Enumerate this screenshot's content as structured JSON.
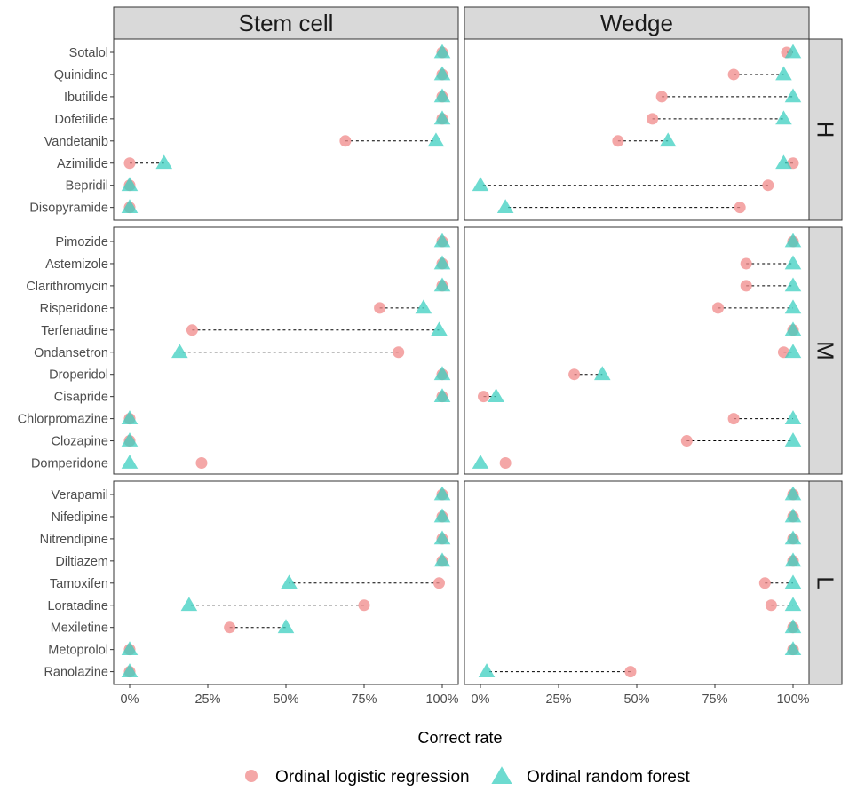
{
  "chart_data": {
    "type": "scatter",
    "subtype": "dumbbell",
    "xlabel": "Correct rate",
    "x_ticks": [
      "0%",
      "25%",
      "50%",
      "75%",
      "100%"
    ],
    "xlim": [
      0,
      100
    ],
    "columns": [
      "Stem cell",
      "Wedge"
    ],
    "rows": [
      {
        "label": "H",
        "drugs": [
          "Sotalol",
          "Quinidine",
          "Ibutilide",
          "Dofetilide",
          "Vandetanib",
          "Azimilide",
          "Bepridil",
          "Disopyramide"
        ]
      },
      {
        "label": "M",
        "drugs": [
          "Pimozide",
          "Astemizole",
          "Clarithromycin",
          "Risperidone",
          "Terfenadine",
          "Ondansetron",
          "Droperidol",
          "Cisapride",
          "Chlorpromazine",
          "Clozapine",
          "Domperidone"
        ]
      },
      {
        "label": "L",
        "drugs": [
          "Verapamil",
          "Nifedipine",
          "Nitrendipine",
          "Diltiazem",
          "Tamoxifen",
          "Loratadine",
          "Mexiletine",
          "Metoprolol",
          "Ranolazine"
        ]
      }
    ],
    "series": [
      {
        "name": "Ordinal logistic regression",
        "color": "#F08A8A",
        "marker": "circle",
        "values": {
          "Stem cell": [
            [
              100,
              100,
              100,
              100,
              69,
              0,
              0,
              0
            ],
            [
              100,
              100,
              100,
              80,
              20,
              86,
              100,
              100,
              0,
              0,
              23
            ],
            [
              100,
              100,
              100,
              100,
              99,
              75,
              32,
              0,
              0
            ]
          ],
          "Wedge": [
            [
              98,
              81,
              58,
              55,
              44,
              100,
              92,
              83
            ],
            [
              100,
              85,
              85,
              76,
              100,
              97,
              30,
              1,
              81,
              66,
              8
            ],
            [
              100,
              100,
              100,
              100,
              91,
              93,
              100,
              100,
              48
            ]
          ]
        }
      },
      {
        "name": "Ordinal random forest",
        "color": "#3CCFC0",
        "marker": "triangle",
        "values": {
          "Stem cell": [
            [
              100,
              100,
              100,
              100,
              98,
              11,
              0,
              0
            ],
            [
              100,
              100,
              100,
              94,
              99,
              16,
              100,
              100,
              0,
              0,
              0
            ],
            [
              100,
              100,
              100,
              100,
              51,
              19,
              50,
              0,
              0
            ]
          ],
          "Wedge": [
            [
              100,
              97,
              100,
              97,
              60,
              97,
              0,
              8
            ],
            [
              100,
              100,
              100,
              100,
              100,
              100,
              39,
              5,
              100,
              100,
              0
            ],
            [
              100,
              100,
              100,
              100,
              100,
              100,
              100,
              100,
              2
            ]
          ]
        }
      }
    ],
    "legend_position": "bottom"
  }
}
